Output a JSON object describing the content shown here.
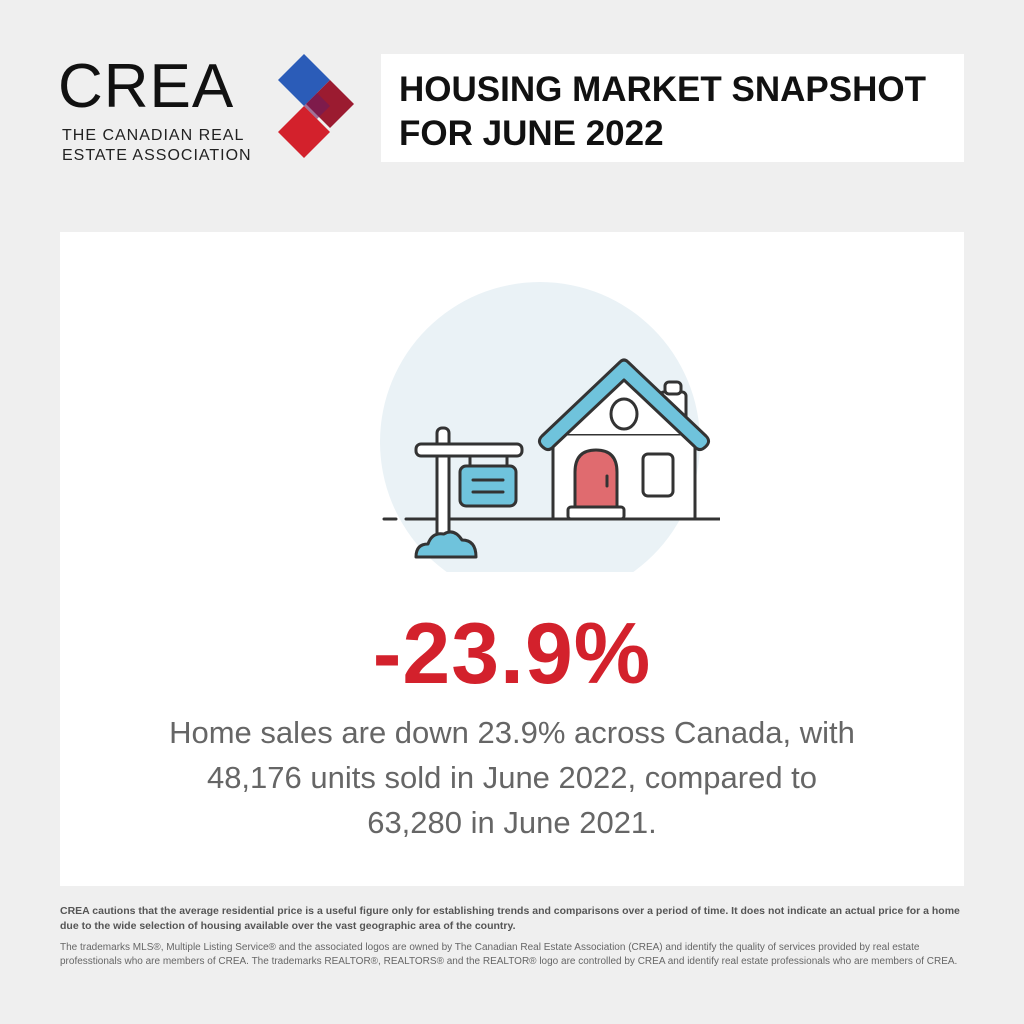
{
  "logo": {
    "word": "CREA",
    "subtitle": "THE CANADIAN REAL ESTATE ASSOCIATION",
    "colors": [
      "#2b5cb8",
      "#9b1b30",
      "#d3212c"
    ]
  },
  "header": {
    "title": "HOUSING MARKET SNAPSHOT FOR JUNE 2022"
  },
  "card": {
    "stat": "-23.9%",
    "description": "Home sales are down 23.9% across Canada, with 48,176 units sold in June 2022, compared to 63,280 in June 2021."
  },
  "footer": {
    "disclaimer": "CREA cautions that the average residential price is a useful figure only for establishing trends and comparisons over a period of time. It does not indicate an actual price for a home due to the wide selection of housing available over the vast geographic area of the country.",
    "trademarks": "The trademarks MLS®, Multiple Listing Service® and the associated logos are owned by The Canadian Real Estate Association (CREA) and identify the quality of services provided by real estate professtionals who are members of CREA. The trademarks REALTOR®, REALTORS® and the REALTOR® logo are controlled by CREA and identify real estate professionals who are members of CREA."
  },
  "colors": {
    "accent_red": "#d3212c",
    "roof_blue": "#6fc3dc",
    "background": "#efefef"
  }
}
